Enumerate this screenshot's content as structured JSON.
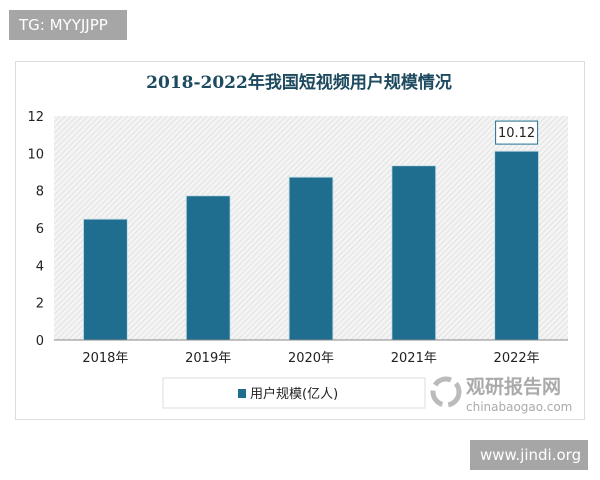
{
  "watermarks": {
    "top_left": "TG: MYYJJPP",
    "bottom_right": "www.jindi.org",
    "logo_cn": "观研报告网",
    "logo_url": "chinabaogao.com"
  },
  "chart_data": {
    "type": "bar",
    "title": "2018-2022年我国短视频用户规模情况",
    "categories": [
      "2018年",
      "2019年",
      "2020年",
      "2021年",
      "2022年"
    ],
    "series": [
      {
        "name": "用户规模(亿人)",
        "values": [
          6.48,
          7.73,
          8.73,
          9.34,
          10.12
        ],
        "color": "#1f6e8f"
      }
    ],
    "yticks": [
      "0",
      "2",
      "4",
      "6",
      "8",
      "10",
      "12"
    ],
    "ylim": [
      0,
      12
    ],
    "data_labels": [
      {
        "index": 4,
        "text": "10.12"
      }
    ],
    "legend": "bottom",
    "grid": false,
    "plot_background": "hatched-gray"
  }
}
